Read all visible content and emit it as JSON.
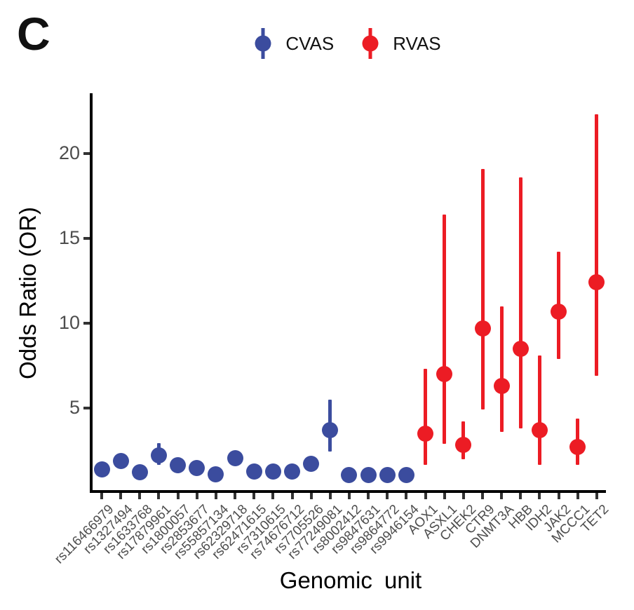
{
  "panel_label": "C",
  "colors": {
    "cvas_blue": "#3b4c9e",
    "rvas_red": "#ec1c24",
    "axis_black": "#000000",
    "tick_gray": "#333333",
    "tick_label_gray": "#4d4d4d"
  },
  "legend": {
    "items": [
      {
        "label": "CVAS",
        "color": "#3b4c9e"
      },
      {
        "label": "RVAS",
        "color": "#ec1c24"
      }
    ]
  },
  "chart_data": {
    "type": "scatter",
    "title": "",
    "xlabel": "Genomic unit",
    "ylabel": "Odds Ratio (OR)",
    "ylim": [
      0,
      23.5
    ],
    "yticks": [
      5,
      10,
      15,
      20
    ],
    "grid": false,
    "legend_position": "top-center",
    "categories": [
      "rs116466979",
      "rs1327494",
      "rs1633768",
      "rs17879961",
      "rs1800057",
      "rs2853677",
      "rs55857134",
      "rs62329718",
      "rs62471615",
      "rs7310615",
      "rs74676712",
      "rs7705526",
      "rs77249081",
      "rs8002412",
      "rs9847631",
      "rs9864772",
      "rs9946154",
      "AOX1",
      "ASXL1",
      "CHEK2",
      "CTR9",
      "DNMT3A",
      "HBB",
      "IDH2",
      "JAK2",
      "MCCC1",
      "TET2"
    ],
    "series": [
      {
        "name": "CVAS",
        "color": "#3b4c9e",
        "points": [
          {
            "category": "rs116466979",
            "or": 1.4,
            "lo": 1.4,
            "hi": 1.4
          },
          {
            "category": "rs1327494",
            "or": 1.9,
            "lo": 1.9,
            "hi": 1.9
          },
          {
            "category": "rs1633768",
            "or": 1.2,
            "lo": 1.2,
            "hi": 1.2
          },
          {
            "category": "rs17879961",
            "or": 2.2,
            "lo": 1.65,
            "hi": 2.93
          },
          {
            "category": "rs1800057",
            "or": 1.65,
            "lo": 1.65,
            "hi": 1.65
          },
          {
            "category": "rs2853677",
            "or": 1.45,
            "lo": 1.45,
            "hi": 1.45
          },
          {
            "category": "rs55857134",
            "or": 1.08,
            "lo": 1.08,
            "hi": 1.08
          },
          {
            "category": "rs62329718",
            "or": 2.05,
            "lo": 2.05,
            "hi": 2.05
          },
          {
            "category": "rs62471615",
            "or": 1.28,
            "lo": 1.28,
            "hi": 1.28
          },
          {
            "category": "rs7310615",
            "or": 1.25,
            "lo": 1.25,
            "hi": 1.25
          },
          {
            "category": "rs74676712",
            "or": 1.28,
            "lo": 1.28,
            "hi": 1.28
          },
          {
            "category": "rs7705526",
            "or": 1.7,
            "lo": 1.7,
            "hi": 1.7
          },
          {
            "category": "rs77249081",
            "or": 3.7,
            "lo": 2.44,
            "hi": 5.5
          },
          {
            "category": "rs8002412",
            "or": 1.07,
            "lo": 1.07,
            "hi": 1.07
          },
          {
            "category": "rs9847631",
            "or": 1.05,
            "lo": 1.05,
            "hi": 1.05
          },
          {
            "category": "rs9864772",
            "or": 1.05,
            "lo": 1.05,
            "hi": 1.05
          },
          {
            "category": "rs9946154",
            "or": 1.05,
            "lo": 1.05,
            "hi": 1.05
          }
        ]
      },
      {
        "name": "RVAS",
        "color": "#ec1c24",
        "points": [
          {
            "category": "AOX1",
            "or": 3.5,
            "lo": 1.65,
            "hi": 7.3
          },
          {
            "category": "ASXL1",
            "or": 7.0,
            "lo": 2.9,
            "hi": 16.4
          },
          {
            "category": "CHEK2",
            "or": 2.85,
            "lo": 2.0,
            "hi": 4.2
          },
          {
            "category": "CTR9",
            "or": 9.7,
            "lo": 4.9,
            "hi": 19.1
          },
          {
            "category": "DNMT3A",
            "or": 6.3,
            "lo": 3.6,
            "hi": 11.0
          },
          {
            "category": "HBB",
            "or": 8.5,
            "lo": 3.8,
            "hi": 18.6
          },
          {
            "category": "IDH2",
            "or": 3.7,
            "lo": 1.65,
            "hi": 8.1
          },
          {
            "category": "JAK2",
            "or": 10.7,
            "lo": 7.9,
            "hi": 14.2
          },
          {
            "category": "MCCC1",
            "or": 2.7,
            "lo": 1.65,
            "hi": 4.4
          },
          {
            "category": "TET2",
            "or": 12.4,
            "lo": 6.9,
            "hi": 22.3
          }
        ]
      }
    ]
  }
}
